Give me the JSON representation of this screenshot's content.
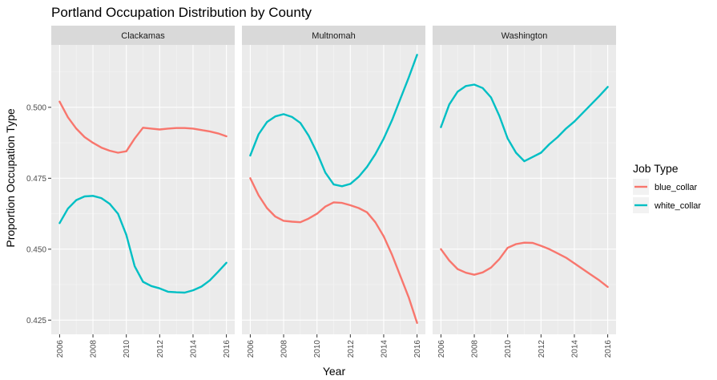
{
  "chart_data": {
    "type": "line",
    "title": "Portland Occupation Distribution by County",
    "xlabel": "Year",
    "ylabel": "Proportion Occupation Type",
    "xlim": [
      2005.5,
      2016.5
    ],
    "ylim": [
      0.42,
      0.522
    ],
    "x_ticks": [
      "2006",
      "2008",
      "2010",
      "2012",
      "2014",
      "2016"
    ],
    "y_ticks": [
      "0.425",
      "0.450",
      "0.475",
      "0.500"
    ],
    "legend_title": "Job Type",
    "legend_position": "right",
    "grid": true,
    "x": [
      2006,
      2006.5,
      2007,
      2007.5,
      2008,
      2008.5,
      2009,
      2009.5,
      2010,
      2010.5,
      2011,
      2011.5,
      2012,
      2012.5,
      2013,
      2013.5,
      2014,
      2014.5,
      2015,
      2015.5,
      2016
    ],
    "panels": [
      {
        "label": "Clackamas",
        "series": [
          {
            "name": "blue_collar",
            "color": "#F8766D",
            "values": [
              0.502,
              0.4965,
              0.4925,
              0.4895,
              0.4875,
              0.4858,
              0.4847,
              0.484,
              0.4845,
              0.489,
              0.4928,
              0.4925,
              0.4922,
              0.4925,
              0.4927,
              0.4927,
              0.4925,
              0.492,
              0.4915,
              0.4908,
              0.4898
            ]
          },
          {
            "name": "white_collar",
            "color": "#00BFC4",
            "values": [
              0.4592,
              0.4643,
              0.4673,
              0.4686,
              0.4688,
              0.468,
              0.466,
              0.4625,
              0.455,
              0.444,
              0.4385,
              0.437,
              0.4362,
              0.435,
              0.4348,
              0.4347,
              0.4355,
              0.4368,
              0.439,
              0.442,
              0.4452
            ]
          }
        ]
      },
      {
        "label": "Multnomah",
        "series": [
          {
            "name": "blue_collar",
            "color": "#F8766D",
            "values": [
              0.475,
              0.469,
              0.4645,
              0.4615,
              0.46,
              0.4597,
              0.4595,
              0.4608,
              0.4625,
              0.465,
              0.4665,
              0.4663,
              0.4655,
              0.4645,
              0.463,
              0.4595,
              0.4545,
              0.448,
              0.4405,
              0.433,
              0.424
            ]
          },
          {
            "name": "white_collar",
            "color": "#00BFC4",
            "values": [
              0.483,
              0.4905,
              0.4948,
              0.4968,
              0.4976,
              0.4966,
              0.4945,
              0.49,
              0.484,
              0.477,
              0.4728,
              0.4722,
              0.473,
              0.4755,
              0.479,
              0.4835,
              0.489,
              0.4955,
              0.503,
              0.5105,
              0.5185
            ]
          }
        ]
      },
      {
        "label": "Washington",
        "series": [
          {
            "name": "blue_collar",
            "color": "#F8766D",
            "values": [
              0.45,
              0.446,
              0.443,
              0.4417,
              0.441,
              0.4418,
              0.4435,
              0.4465,
              0.4505,
              0.4518,
              0.4523,
              0.4522,
              0.4512,
              0.45,
              0.4485,
              0.447,
              0.445,
              0.443,
              0.441,
              0.439,
              0.4367
            ]
          },
          {
            "name": "white_collar",
            "color": "#00BFC4",
            "values": [
              0.493,
              0.501,
              0.5055,
              0.5075,
              0.508,
              0.5068,
              0.5035,
              0.497,
              0.489,
              0.484,
              0.481,
              0.4825,
              0.484,
              0.487,
              0.4895,
              0.4925,
              0.495,
              0.498,
              0.501,
              0.504,
              0.5072
            ]
          }
        ]
      }
    ]
  }
}
